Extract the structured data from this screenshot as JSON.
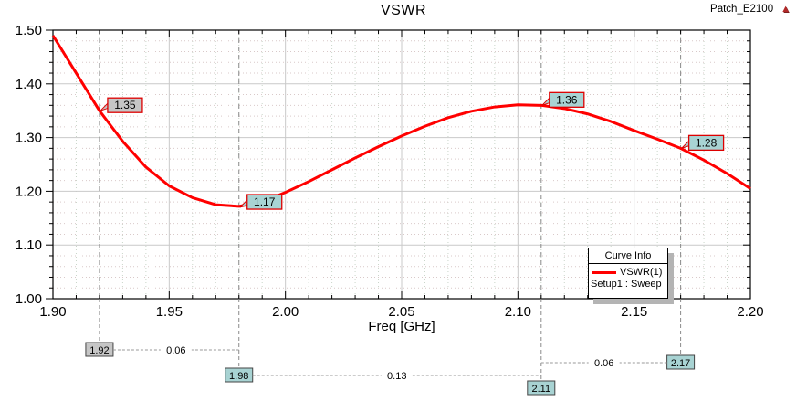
{
  "header": {
    "title": "VSWR",
    "project": "Patch_E2100",
    "logo_icon": "ansoft-triangle"
  },
  "legend": {
    "title": "Curve Info",
    "series_label": "VSWR(1)",
    "sweep_label": "Setup1 : Sweep",
    "series_color": "#ff0000"
  },
  "colors": {
    "curve": "#ff0000",
    "major_grid": "#c9c9c9",
    "minor_grid_h": "#d9c9c9",
    "minor_grid_v": "#c9d5c9",
    "marker_dash_line": "#8a8a8a",
    "marker_fill_grey": "#c6c6c6",
    "marker_fill_teal": "#a8d3d3",
    "marker_border_red": "#dd0000",
    "marker_border_dark": "#444444",
    "distance_line": "#9a9a9a"
  },
  "chart_data": {
    "type": "line",
    "title": "VSWR",
    "xlabel": "Freq [GHz]",
    "ylabel": "",
    "xlim": [
      1.9,
      2.2
    ],
    "ylim": [
      1.0,
      1.5
    ],
    "x_major_step": 0.05,
    "x_minor_step": 0.01,
    "y_major_step": 0.1,
    "y_minor_step": 0.02,
    "x_tick_labels": [
      "1.90",
      "1.95",
      "2.00",
      "2.05",
      "2.10",
      "2.15",
      "2.20"
    ],
    "y_tick_labels": [
      "1.00",
      "1.10",
      "1.20",
      "1.30",
      "1.40",
      "1.50"
    ],
    "grid": true,
    "legend_position": "bottom-right",
    "series": [
      {
        "name": "VSWR(1)",
        "color": "#ff0000",
        "x": [
          1.9,
          1.91,
          1.92,
          1.93,
          1.94,
          1.95,
          1.96,
          1.97,
          1.98,
          1.99,
          2.0,
          2.01,
          2.02,
          2.03,
          2.04,
          2.05,
          2.06,
          2.07,
          2.08,
          2.09,
          2.1,
          2.11,
          2.12,
          2.13,
          2.14,
          2.15,
          2.16,
          2.17,
          2.18,
          2.19,
          2.2
        ],
        "y": [
          1.49,
          1.42,
          1.35,
          1.293,
          1.245,
          1.21,
          1.188,
          1.175,
          1.172,
          1.18,
          1.198,
          1.218,
          1.24,
          1.262,
          1.283,
          1.303,
          1.321,
          1.337,
          1.349,
          1.357,
          1.361,
          1.36,
          1.354,
          1.344,
          1.33,
          1.313,
          1.297,
          1.28,
          1.258,
          1.233,
          1.205
        ]
      }
    ],
    "markers": [
      {
        "x": 1.92,
        "y": 1.35,
        "label": "1.35",
        "fill": "#c6c6c6"
      },
      {
        "x": 1.98,
        "y": 1.17,
        "label": "1.17",
        "fill": "#a8d3d3"
      },
      {
        "x": 2.11,
        "y": 1.36,
        "label": "1.36",
        "fill": "#a8d3d3"
      },
      {
        "x": 2.17,
        "y": 1.28,
        "label": "1.28",
        "fill": "#a8d3d3"
      }
    ],
    "bottom_markers": [
      {
        "label": "1.92",
        "x": 1.92,
        "fill": "#c6c6c6",
        "level": 0
      },
      {
        "label": "2.17",
        "x": 2.17,
        "fill": "#a8d3d3",
        "level": 1
      },
      {
        "label": "1.98",
        "x": 1.98,
        "fill": "#a8d3d3",
        "level": 2
      },
      {
        "label": "2.11",
        "x": 2.11,
        "fill": "#a8d3d3",
        "level": 3
      }
    ],
    "distances": [
      {
        "x1": 1.92,
        "x1_edge": "box",
        "x2": 1.98,
        "x2_edge": "line",
        "label": "0.06",
        "level": 0
      },
      {
        "x1": 1.98,
        "x1_edge": "box",
        "x2": 2.11,
        "x2_edge": "line",
        "label": "0.13",
        "level": 2
      },
      {
        "x1": 2.11,
        "x1_edge": "line",
        "x2": 2.17,
        "x2_edge": "box",
        "label": "0.06",
        "level": 1
      }
    ]
  }
}
